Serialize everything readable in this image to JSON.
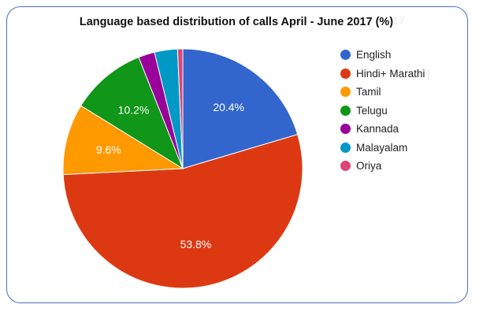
{
  "chart_data": {
    "type": "pie",
    "title": "Language based distribution of calls April - June 2017 (%)",
    "series": [
      {
        "name": "English",
        "value": 20.4,
        "label": "20.4%",
        "color": "#3366cc"
      },
      {
        "name": "Hindi+ Marathi",
        "value": 53.8,
        "label": "53.8%",
        "color": "#dc3912"
      },
      {
        "name": "Tamil",
        "value": 9.6,
        "label": "9.6%",
        "color": "#ff9900"
      },
      {
        "name": "Telugu",
        "value": 10.2,
        "label": "10.2%",
        "color": "#109618"
      },
      {
        "name": "Kannada",
        "value": 2.2,
        "label": "",
        "color": "#990099"
      },
      {
        "name": "Malayalam",
        "value": 3.1,
        "label": "",
        "color": "#0099c6"
      },
      {
        "name": "Oriya",
        "value": 0.7,
        "label": "",
        "color": "#dd4477"
      }
    ],
    "legend_position": "right"
  }
}
